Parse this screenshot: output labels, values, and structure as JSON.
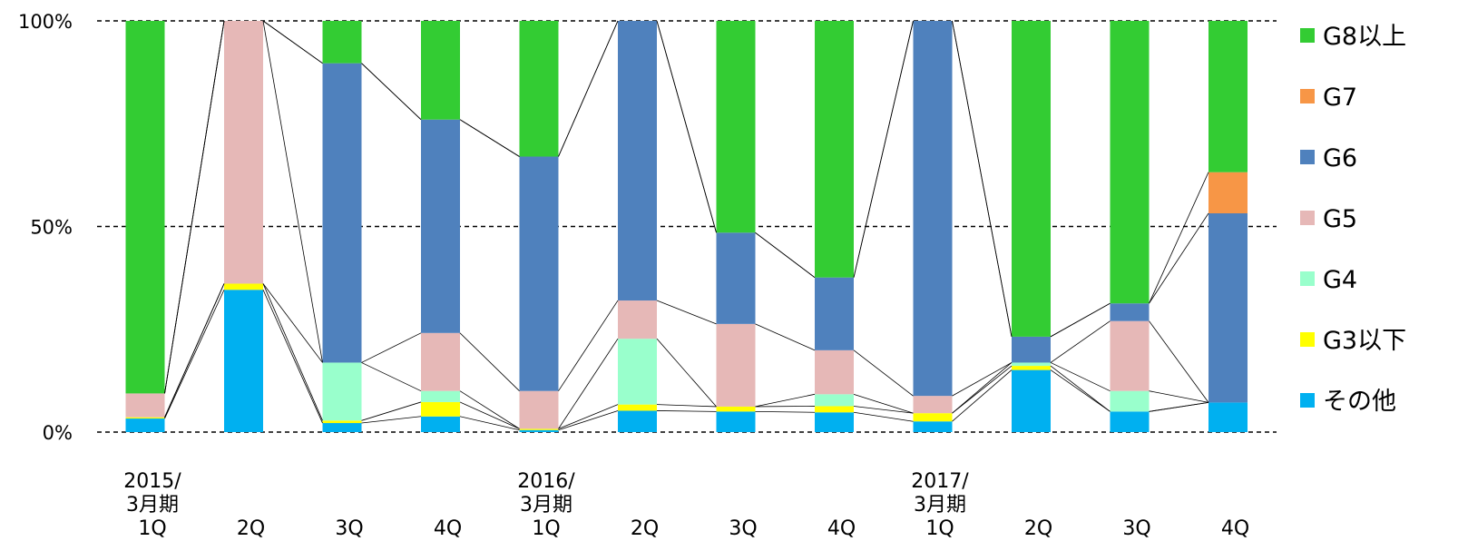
{
  "chart_data": {
    "type": "bar",
    "stacked": true,
    "normalized": true,
    "categories": [
      [
        "2015/",
        "3月期",
        "1Q"
      ],
      [
        "2Q"
      ],
      [
        "3Q"
      ],
      [
        "4Q"
      ],
      [
        "2016/",
        "3月期",
        "1Q"
      ],
      [
        "2Q"
      ],
      [
        "3Q"
      ],
      [
        "4Q"
      ],
      [
        "2017/",
        "3月期",
        "1Q"
      ],
      [
        "2Q"
      ],
      [
        "3Q"
      ],
      [
        "4Q"
      ]
    ],
    "series": [
      {
        "name": "その他",
        "color": "#00B0F0",
        "values": [
          3.3,
          34.6,
          2.2,
          3.8,
          0.5,
          5.2,
          5.0,
          4.8,
          2.6,
          15.1,
          5.0,
          7.2
        ]
      },
      {
        "name": "G3以下",
        "color": "#FFFF00",
        "values": [
          0.3,
          1.5,
          0.6,
          3.5,
          0.3,
          1.5,
          1.2,
          1.5,
          2.0,
          1.0,
          0.0,
          0.0
        ]
      },
      {
        "name": "G4",
        "color": "#99FFCC",
        "values": [
          0.0,
          0.0,
          14.1,
          2.7,
          0.0,
          16.0,
          0.0,
          2.9,
          0.0,
          0.8,
          5.0,
          0.0
        ]
      },
      {
        "name": "G5",
        "color": "#E6B8B7",
        "values": [
          5.8,
          63.9,
          0.0,
          14.1,
          9.2,
          9.3,
          20.1,
          10.7,
          4.2,
          0.0,
          17.0,
          0.0
        ]
      },
      {
        "name": "G6",
        "color": "#4F81BD",
        "values": [
          0.0,
          0.0,
          72.8,
          51.9,
          57.0,
          68.0,
          22.2,
          17.7,
          91.2,
          6.3,
          4.3,
          46.0
        ]
      },
      {
        "name": "G7",
        "color": "#F79646",
        "values": [
          0.0,
          0.0,
          0.0,
          0.0,
          0.0,
          0.0,
          0.0,
          0.0,
          0.0,
          0.0,
          0.0,
          10.0
        ]
      },
      {
        "name": "G8以上",
        "color": "#33CC33",
        "values": [
          90.6,
          0.0,
          10.3,
          24.0,
          33.0,
          0.0,
          51.5,
          62.4,
          0.0,
          76.8,
          68.7,
          36.8
        ]
      }
    ],
    "yticks": [
      "0%",
      "50%",
      "100%"
    ],
    "ylim": [
      0,
      100
    ],
    "grid": "dashed horizontal at 0%, 50%, 100%",
    "legend": "right",
    "series_lines": true
  }
}
